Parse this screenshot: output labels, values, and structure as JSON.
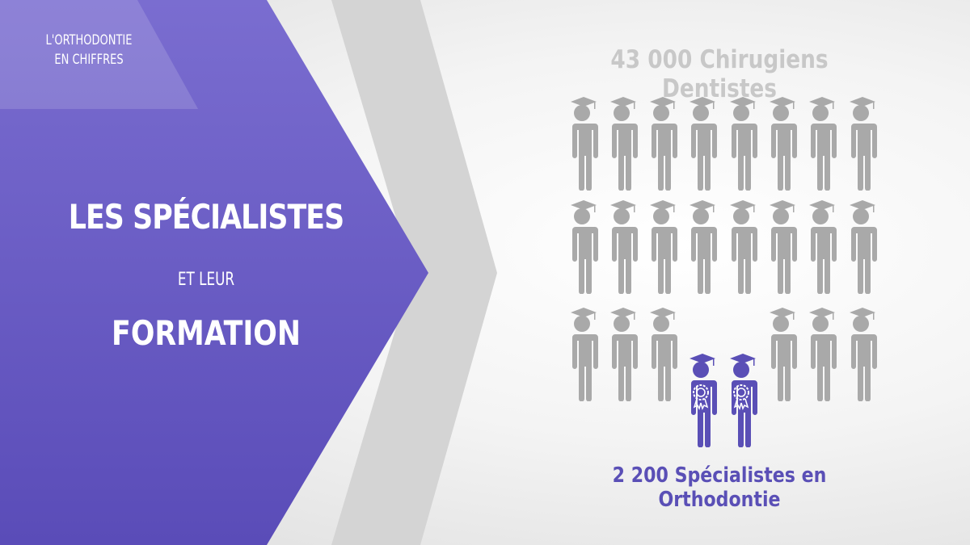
{
  "slide": {
    "section_label_line1": "L'ORTHODONTIE",
    "section_label_line2": "EN CHIFFRES",
    "title_line1": "LES SPÉCIALISTES",
    "title_line2": "ET LEUR",
    "title_line3": "FORMATION"
  },
  "infographic": {
    "total_label": "43 000 Chirugiens Dentistes",
    "specialists_label": "2 200 Spécialistes en Orthodontie",
    "colors": {
      "general": "#a9a9a9",
      "specialist": "#5a4fb6",
      "panel": "#6a5cc4"
    },
    "icons": {
      "general": "graduate-person-icon",
      "specialist": "graduate-person-award-icon"
    }
  }
}
